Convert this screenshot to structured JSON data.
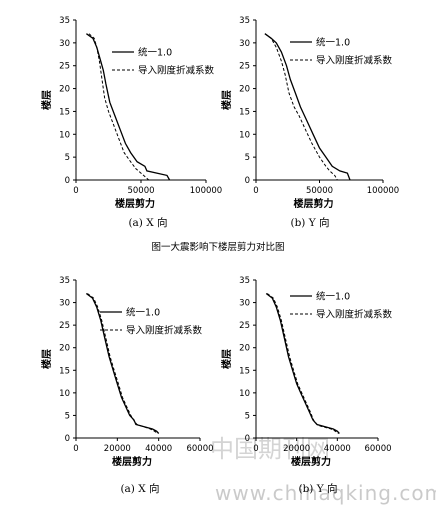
{
  "figure_title": "图一大震影响下楼层剪力对比图",
  "watermark": {
    "line1": "中国期刊网",
    "line2": "www.chinaqking.com"
  },
  "chart_data": [
    {
      "type": "line",
      "subtitle": "(a) X 向",
      "xlabel": "楼层剪力",
      "ylabel": "楼层",
      "xlim": [
        0,
        100000
      ],
      "ylim": [
        0,
        35
      ],
      "xticks": [
        0,
        50000,
        100000
      ],
      "xtick_labels": [
        "0",
        "50000",
        "100000"
      ],
      "yticks": [
        0,
        5,
        10,
        15,
        20,
        25,
        30,
        35
      ],
      "legend_position": "top-right",
      "series": [
        {
          "name": "统一1.0",
          "style": "solid",
          "x": [
            8000,
            13000,
            16000,
            19000,
            21000,
            23000,
            26000,
            30000,
            34000,
            38000,
            42000,
            47000,
            53000,
            54500,
            70000,
            72000
          ],
          "y": [
            32,
            31,
            29,
            26,
            24,
            21,
            17,
            14,
            11,
            8,
            6,
            4,
            3,
            2,
            1,
            0
          ]
        },
        {
          "name": "导入刚度折减系数",
          "style": "dashed",
          "x": [
            10000,
            14000,
            16000,
            18000,
            20000,
            22000,
            25000,
            29000,
            33000,
            37000,
            42000,
            46000,
            48000,
            52000,
            56000
          ],
          "y": [
            32,
            31,
            29,
            26,
            22,
            18,
            15,
            12,
            9,
            6,
            4,
            2.5,
            2,
            1,
            0
          ]
        }
      ]
    },
    {
      "type": "line",
      "subtitle": "(b) Y 向",
      "xlabel": "楼层剪力",
      "ylabel": "楼层",
      "xlim": [
        0,
        100000
      ],
      "ylim": [
        0,
        35
      ],
      "xticks": [
        0,
        50000,
        100000
      ],
      "xtick_labels": [
        "0",
        "50000",
        "100000"
      ],
      "yticks": [
        0,
        5,
        10,
        15,
        20,
        25,
        30,
        35
      ],
      "legend_position": "top-right",
      "series": [
        {
          "name": "统一1.0",
          "style": "solid",
          "x": [
            7000,
            12000,
            16000,
            20000,
            24000,
            27000,
            31000,
            35000,
            40000,
            45000,
            50000,
            55000,
            60000,
            66000,
            72000,
            74000
          ],
          "y": [
            32,
            31,
            30,
            28,
            25,
            22,
            19,
            16,
            13,
            10,
            7,
            5,
            3,
            2,
            1.5,
            0
          ]
        },
        {
          "name": "导入刚度折减系数",
          "style": "dashed",
          "x": [
            7000,
            12000,
            16000,
            20000,
            23000,
            26000,
            30000,
            34000,
            39000,
            44000,
            50000,
            55000,
            58000,
            62000,
            64000
          ],
          "y": [
            32,
            31,
            29,
            26,
            23,
            19,
            16,
            14,
            11,
            8,
            5,
            3,
            2,
            1,
            0
          ]
        }
      ]
    },
    {
      "type": "line",
      "subtitle": "(a) X 向",
      "xlabel": "楼层剪力",
      "ylabel": "楼层",
      "xlim": [
        0,
        60000
      ],
      "ylim": [
        0,
        35
      ],
      "xticks": [
        0,
        20000,
        40000,
        60000
      ],
      "xtick_labels": [
        "0",
        "20000",
        "40000",
        "60000"
      ],
      "yticks": [
        0,
        5,
        10,
        15,
        20,
        25,
        30,
        35
      ],
      "legend_position": "top-right",
      "series": [
        {
          "name": "统一1.0",
          "style": "solid",
          "x": [
            5000,
            8000,
            10000,
            12000,
            14000,
            16000,
            18000,
            20000,
            22000,
            24000,
            26000,
            28000,
            29000,
            37000,
            39000,
            40000
          ],
          "y": [
            32,
            31,
            29,
            26,
            22,
            18,
            15,
            12,
            9,
            7,
            5,
            4,
            3,
            2,
            1.5,
            1
          ]
        },
        {
          "name": "导入刚度折减系数",
          "style": "dashed",
          "x": [
            5500,
            8500,
            10500,
            12500,
            14500,
            16500,
            18500,
            20500,
            22500,
            24500,
            26500,
            28500,
            29500,
            36000,
            38000,
            39500
          ],
          "y": [
            32,
            31,
            29,
            26,
            22,
            18,
            15,
            12,
            9,
            7,
            5,
            3.5,
            3,
            2,
            1.5,
            1
          ]
        }
      ]
    },
    {
      "type": "line",
      "subtitle": "(b) Y 向",
      "xlabel": "楼层剪力",
      "ylabel": "楼层",
      "xlim": [
        0,
        60000
      ],
      "ylim": [
        0,
        35
      ],
      "xticks": [
        0,
        20000,
        40000,
        60000
      ],
      "xtick_labels": [
        "0",
        "20000",
        "40000",
        "60000"
      ],
      "yticks": [
        0,
        5,
        10,
        15,
        20,
        25,
        30,
        35
      ],
      "legend_position": "top-right",
      "series": [
        {
          "name": "统一1.0",
          "style": "solid",
          "x": [
            5000,
            8000,
            10000,
            12000,
            14000,
            16000,
            18000,
            20000,
            22000,
            24000,
            26000,
            28000,
            30000,
            38000,
            40000,
            41000
          ],
          "y": [
            32,
            31,
            29,
            26,
            22,
            18,
            15,
            12,
            10,
            8,
            6,
            4,
            3,
            2,
            1.5,
            1
          ]
        },
        {
          "name": "导入刚度折减系数",
          "style": "dashed",
          "x": [
            5500,
            8500,
            10500,
            12500,
            14500,
            16500,
            18500,
            20500,
            22500,
            24500,
            26500,
            28500,
            30500,
            37000,
            39000,
            40500
          ],
          "y": [
            32,
            31,
            29,
            26,
            22,
            18,
            15,
            12,
            10,
            8,
            6,
            3.8,
            2.8,
            2,
            1.5,
            1
          ]
        }
      ]
    }
  ]
}
